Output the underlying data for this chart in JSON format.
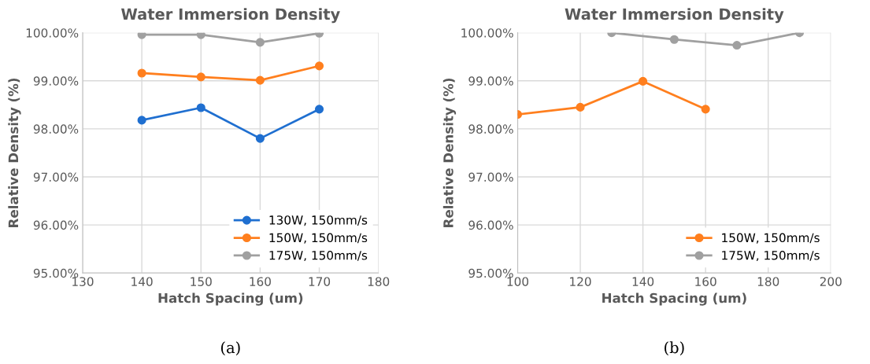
{
  "chart_data": [
    {
      "type": "line",
      "title": "Water Immersion Density",
      "xlabel": "Hatch Spacing (um)",
      "ylabel": "Relative Density (%)",
      "x": [
        140,
        150,
        160,
        170
      ],
      "series": [
        {
          "name": "130W, 150mm/s",
          "color": "#1f6fd0",
          "values": [
            98.18,
            98.44,
            97.8,
            98.41
          ]
        },
        {
          "name": "150W, 150mm/s",
          "color": "#ff7f1e",
          "values": [
            99.16,
            99.08,
            99.01,
            99.31
          ]
        },
        {
          "name": "175W, 150mm/s",
          "color": "#a0a0a0",
          "values": [
            99.96,
            99.96,
            99.8,
            99.99
          ]
        }
      ],
      "xlim": [
        130,
        180
      ],
      "xticks": [
        130,
        140,
        150,
        160,
        170,
        180
      ],
      "ylim": [
        95,
        100
      ],
      "yticks": [
        {
          "value": 95,
          "label": "95.00%"
        },
        {
          "value": 96,
          "label": "96.00%"
        },
        {
          "value": 97,
          "label": "97.00%"
        },
        {
          "value": 98,
          "label": "98.00%"
        },
        {
          "value": 99,
          "label": "99.00%"
        },
        {
          "value": 100,
          "label": "100.00%"
        }
      ],
      "grid": true,
      "legend": "bottom right",
      "marker": "circle",
      "line_style": "solid",
      "annotations": [
        "(a)"
      ]
    },
    {
      "type": "line",
      "title": "Water Immersion Density",
      "xlabel": "Hatch Spacing (um)",
      "ylabel": "Relative Density (%)",
      "series": [
        {
          "name": "150W, 150mm/s",
          "color": "#ff7f1e",
          "x": [
            100,
            120,
            140,
            160
          ],
          "values": [
            98.3,
            98.45,
            98.99,
            98.41
          ]
        },
        {
          "name": "175W, 150mm/s",
          "color": "#a0a0a0",
          "x": [
            130,
            150,
            170,
            190
          ],
          "values": [
            100.0,
            99.86,
            99.74,
            100.0
          ]
        }
      ],
      "xlim": [
        100,
        200
      ],
      "xticks": [
        100,
        120,
        140,
        160,
        180,
        200
      ],
      "ylim": [
        95,
        100
      ],
      "yticks": [
        {
          "value": 95,
          "label": "95.00%"
        },
        {
          "value": 96,
          "label": "96.00%"
        },
        {
          "value": 97,
          "label": "97.00%"
        },
        {
          "value": 98,
          "label": "98.00%"
        },
        {
          "value": 99,
          "label": "99.00%"
        },
        {
          "value": 100,
          "label": "100.00%"
        }
      ],
      "grid": true,
      "legend": "bottom right",
      "marker": "circle",
      "line_style": "solid",
      "annotations": [
        "(b)"
      ]
    }
  ]
}
